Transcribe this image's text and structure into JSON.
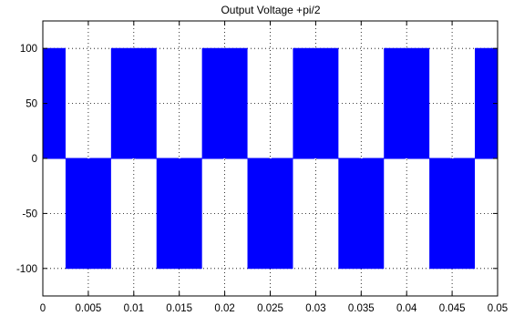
{
  "chart_data": {
    "type": "line",
    "title": "Output Voltage +pi/2",
    "xlabel": "",
    "ylabel": "",
    "xlim": [
      0,
      0.05
    ],
    "ylim": [
      -125,
      125
    ],
    "x_ticks": [
      0,
      0.005,
      0.01,
      0.015,
      0.02,
      0.025,
      0.03,
      0.035,
      0.04,
      0.045,
      0.05
    ],
    "x_tick_labels": [
      "0",
      "0.005",
      "0.01",
      "0.015",
      "0.02",
      "0.025",
      "0.03",
      "0.035",
      "0.04",
      "0.045",
      "0.05"
    ],
    "y_ticks": [
      -100,
      -50,
      0,
      50,
      100
    ],
    "y_tick_labels": [
      "-100",
      "-50",
      "0",
      "50",
      "100"
    ],
    "grid": true,
    "grid_style": "dotted",
    "series": [
      {
        "color": "#0000ff",
        "signal": "pwm",
        "levels": [
          -100,
          0,
          100
        ],
        "fundamental_frequency_hz": 100,
        "phase_shift_rad": 1.5708,
        "carrier_frequency_hz": 10000,
        "positive_half_cycles": [
          [
            0,
            0.0025
          ],
          [
            0.0075,
            0.0125
          ],
          [
            0.0175,
            0.0225
          ],
          [
            0.0275,
            0.0325
          ],
          [
            0.0375,
            0.0425
          ],
          [
            0.0475,
            0.05
          ]
        ],
        "negative_half_cycles": [
          [
            0.0025,
            0.0075
          ],
          [
            0.0125,
            0.0175
          ],
          [
            0.0225,
            0.0275
          ],
          [
            0.0325,
            0.0375
          ],
          [
            0.0425,
            0.0475
          ]
        ]
      }
    ]
  },
  "colors": {
    "axes_background": "#ffffff",
    "axes_frame": "#000000",
    "grid": "#000000",
    "signal": "#0000ff"
  }
}
